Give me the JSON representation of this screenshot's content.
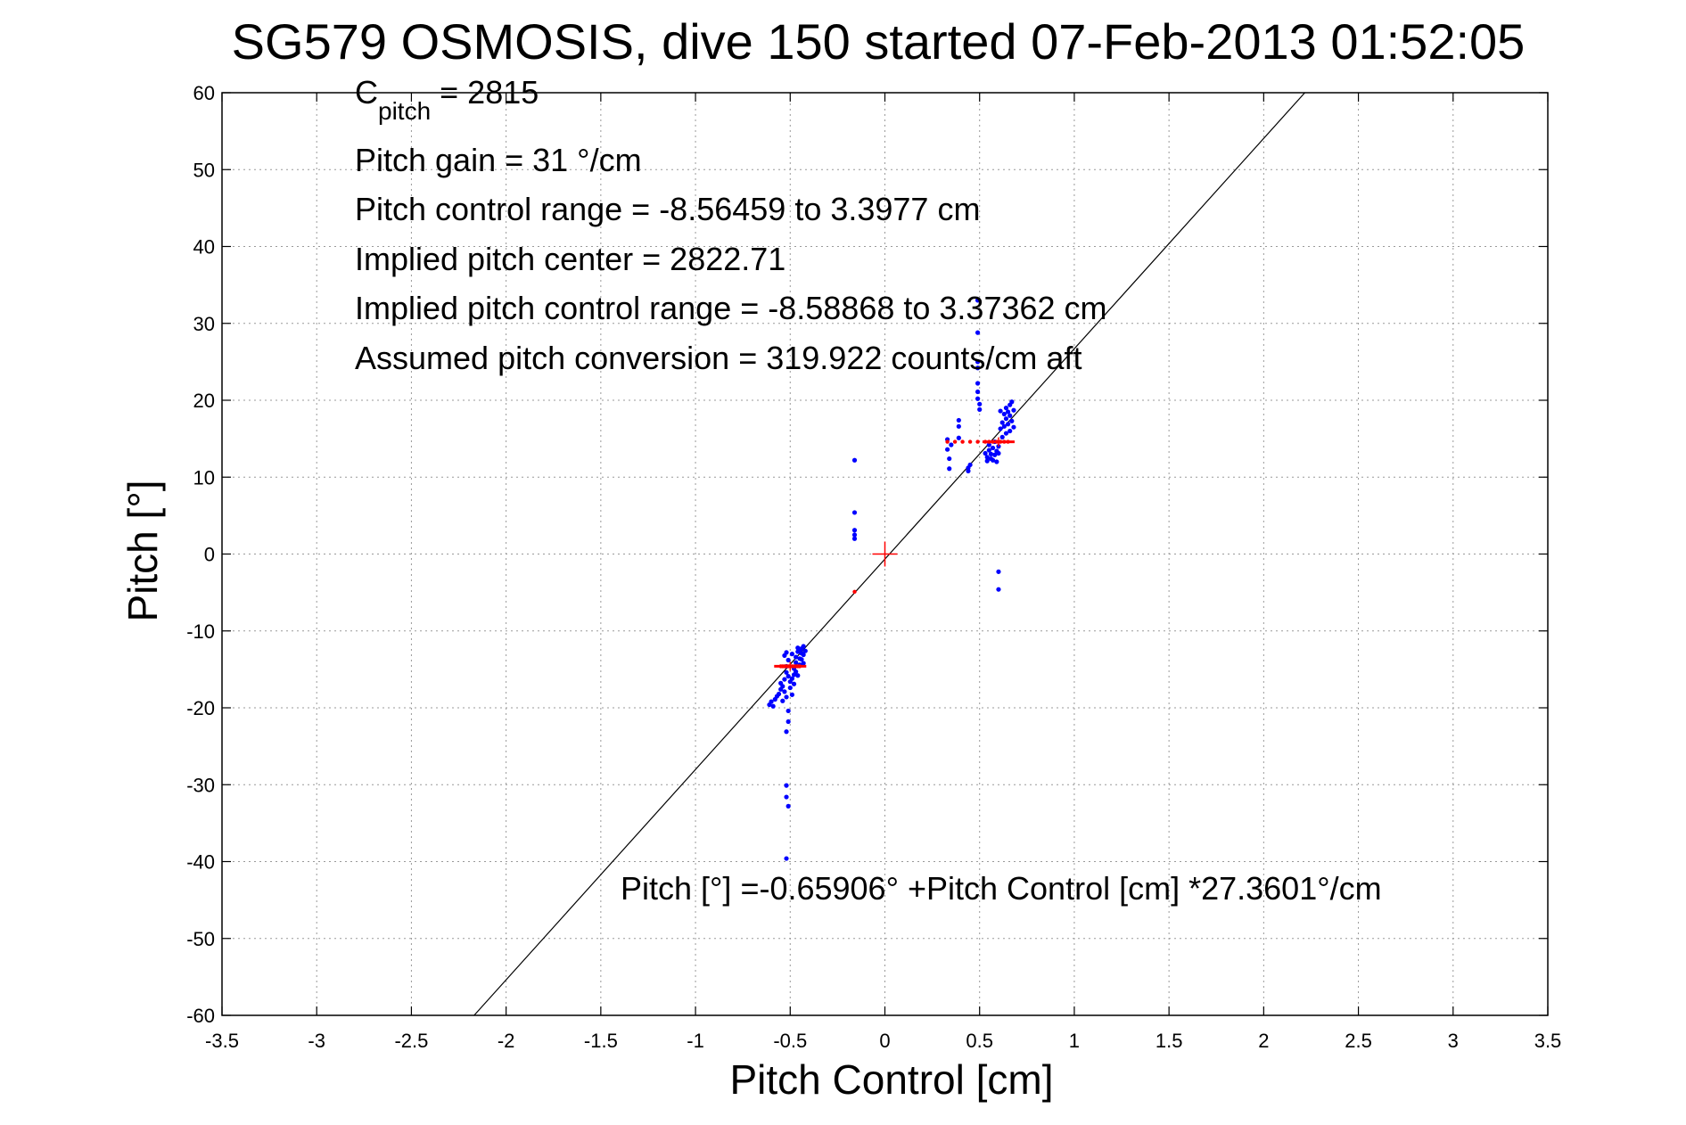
{
  "chart_data": {
    "type": "scatter",
    "title": "SG579 OSMOSIS, dive 150 started 07-Feb-2013 01:52:05",
    "xlabel": "Pitch Control [cm]",
    "ylabel": "Pitch [°]",
    "xlim": [
      -3.5,
      3.5
    ],
    "ylim": [
      -60,
      60
    ],
    "grid": true,
    "x_ticks": [
      "-3.5",
      "-3",
      "-2.5",
      "-2",
      "-1.5",
      "-1",
      "-0.5",
      "0",
      "0.5",
      "1",
      "1.5",
      "2",
      "2.5",
      "3",
      "3.5"
    ],
    "y_ticks": [
      "60",
      "50",
      "40",
      "30",
      "20",
      "10",
      "0",
      "-10",
      "-20",
      "-30",
      "-40",
      "-50",
      "-60"
    ],
    "annotations": {
      "c_pitch_main": "C",
      "c_pitch_sub": "pitch",
      "c_pitch_value": " = 2815",
      "pitch_gain": "Pitch gain = 31 °/cm",
      "pitch_control_range": "Pitch control range = -8.56459 to 3.3977 cm",
      "implied_pitch_center": "Implied pitch center = 2822.71",
      "implied_pitch_control_range": "Implied pitch control range = -8.58868 to 3.37362 cm",
      "assumed_pitch_conversion": "Assumed pitch conversion = 319.922 counts/cm aft",
      "fit_equation": "Pitch [°] =-0.65906° +Pitch Control [cm] *27.3601°/cm"
    },
    "fit_line": {
      "intercept": -0.65906,
      "slope": 27.3601
    },
    "colors": {
      "points": "#0000ff",
      "markers": "#ff0000",
      "fit": "#000000",
      "grid": "#999999"
    },
    "series": [
      {
        "values": [
          [
            -0.61,
            -19.6
          ],
          [
            -0.6,
            -19.2
          ],
          [
            -0.59,
            -19.8
          ],
          [
            -0.58,
            -18.9
          ],
          [
            -0.57,
            -18.5
          ],
          [
            -0.56,
            -18.2
          ],
          [
            -0.55,
            -17.6
          ],
          [
            -0.54,
            -19.1
          ],
          [
            -0.53,
            -17.9
          ],
          [
            -0.52,
            -18.6
          ],
          [
            -0.55,
            -16.8
          ],
          [
            -0.54,
            -17.2
          ],
          [
            -0.53,
            -16.3
          ],
          [
            -0.52,
            -15.4
          ],
          [
            -0.52,
            -14.6
          ],
          [
            -0.51,
            -13.8
          ],
          [
            -0.53,
            -13.2
          ],
          [
            -0.52,
            -12.8
          ],
          [
            -0.51,
            -15.9
          ],
          [
            -0.51,
            -20.4
          ],
          [
            -0.51,
            -21.8
          ],
          [
            -0.52,
            -23.1
          ],
          [
            -0.52,
            -30.1
          ],
          [
            -0.52,
            -31.6
          ],
          [
            -0.51,
            -32.8
          ],
          [
            -0.52,
            -39.6
          ],
          [
            -0.49,
            -16.2
          ],
          [
            -0.48,
            -15.7
          ],
          [
            -0.48,
            -14.9
          ],
          [
            -0.47,
            -14.1
          ],
          [
            -0.47,
            -13.4
          ],
          [
            -0.46,
            -12.7
          ],
          [
            -0.46,
            -12.2
          ],
          [
            -0.45,
            -13.6
          ],
          [
            -0.45,
            -14.4
          ],
          [
            -0.44,
            -12.9
          ],
          [
            -0.44,
            -12.3
          ],
          [
            -0.43,
            -13.1
          ],
          [
            -0.43,
            -14.2
          ],
          [
            -0.42,
            -12.6
          ],
          [
            -0.5,
            -17.4
          ],
          [
            -0.49,
            -18.3
          ],
          [
            -0.5,
            -16.6
          ],
          [
            -0.48,
            -16.9
          ],
          [
            -0.47,
            -15.3
          ],
          [
            -0.46,
            -15.8
          ],
          [
            -0.45,
            -12.5
          ],
          [
            -0.44,
            -13.7
          ],
          [
            -0.43,
            -12.0
          ],
          [
            -0.49,
            -13.0
          ],
          [
            -0.16,
            12.2
          ],
          [
            -0.16,
            5.4
          ],
          [
            -0.16,
            3.1
          ],
          [
            -0.16,
            2.5
          ],
          [
            -0.16,
            2.0
          ],
          [
            0.33,
            14.9
          ],
          [
            0.33,
            13.6
          ],
          [
            0.34,
            12.4
          ],
          [
            0.34,
            11.1
          ],
          [
            0.35,
            14.2
          ],
          [
            0.39,
            16.6
          ],
          [
            0.39,
            17.4
          ],
          [
            0.39,
            15.1
          ],
          [
            0.44,
            11.2
          ],
          [
            0.44,
            10.8
          ],
          [
            0.45,
            11.6
          ],
          [
            0.49,
            33.0
          ],
          [
            0.49,
            28.8
          ],
          [
            0.49,
            25.0
          ],
          [
            0.49,
            22.2
          ],
          [
            0.49,
            21.1
          ],
          [
            0.49,
            20.2
          ],
          [
            0.5,
            19.5
          ],
          [
            0.5,
            18.8
          ],
          [
            0.49,
            24.2
          ],
          [
            0.53,
            13.1
          ],
          [
            0.54,
            12.6
          ],
          [
            0.54,
            12.1
          ],
          [
            0.55,
            13.5
          ],
          [
            0.55,
            14.2
          ],
          [
            0.56,
            13.0
          ],
          [
            0.56,
            12.4
          ],
          [
            0.57,
            13.8
          ],
          [
            0.57,
            12.2
          ],
          [
            0.58,
            14.6
          ],
          [
            0.58,
            12.9
          ],
          [
            0.59,
            13.4
          ],
          [
            0.59,
            12.0
          ],
          [
            0.6,
            14.0
          ],
          [
            0.6,
            13.1
          ],
          [
            0.6,
            -2.3
          ],
          [
            0.6,
            -4.6
          ],
          [
            0.61,
            16.3
          ],
          [
            0.62,
            17.1
          ],
          [
            0.63,
            16.6
          ],
          [
            0.63,
            18.2
          ],
          [
            0.64,
            17.6
          ],
          [
            0.64,
            19.0
          ],
          [
            0.65,
            18.5
          ],
          [
            0.65,
            16.9
          ],
          [
            0.66,
            19.4
          ],
          [
            0.66,
            18.0
          ],
          [
            0.67,
            17.3
          ],
          [
            0.67,
            19.8
          ],
          [
            0.68,
            18.7
          ],
          [
            0.68,
            16.5
          ],
          [
            0.62,
            15.2
          ],
          [
            0.64,
            15.7
          ],
          [
            0.66,
            16.0
          ],
          [
            0.61,
            18.6
          ]
        ]
      },
      {
        "values": [
          [
            -0.55,
            -14.6
          ],
          [
            -0.54,
            -14.6
          ],
          [
            -0.53,
            -14.6
          ],
          [
            -0.52,
            -14.6
          ],
          [
            -0.51,
            -14.6
          ],
          [
            -0.5,
            -14.6
          ],
          [
            -0.49,
            -14.6
          ],
          [
            -0.48,
            -14.6
          ],
          [
            -0.47,
            -14.6
          ],
          [
            -0.46,
            -14.6
          ],
          [
            -0.45,
            -14.6
          ],
          [
            -0.16,
            -4.9
          ],
          [
            0.33,
            14.6
          ],
          [
            0.37,
            14.6
          ],
          [
            0.41,
            14.6
          ],
          [
            0.45,
            14.6
          ],
          [
            0.49,
            14.6
          ],
          [
            0.53,
            14.6
          ],
          [
            0.55,
            14.6
          ],
          [
            0.57,
            14.6
          ],
          [
            0.59,
            14.6
          ],
          [
            0.61,
            14.6
          ],
          [
            0.63,
            14.6
          ],
          [
            0.65,
            14.6
          ]
        ]
      }
    ],
    "markers": [
      {
        "x": 0,
        "y": 0
      },
      {
        "x": -0.5,
        "y": -14.6
      },
      {
        "x": 0.6,
        "y": 14.6
      }
    ]
  }
}
